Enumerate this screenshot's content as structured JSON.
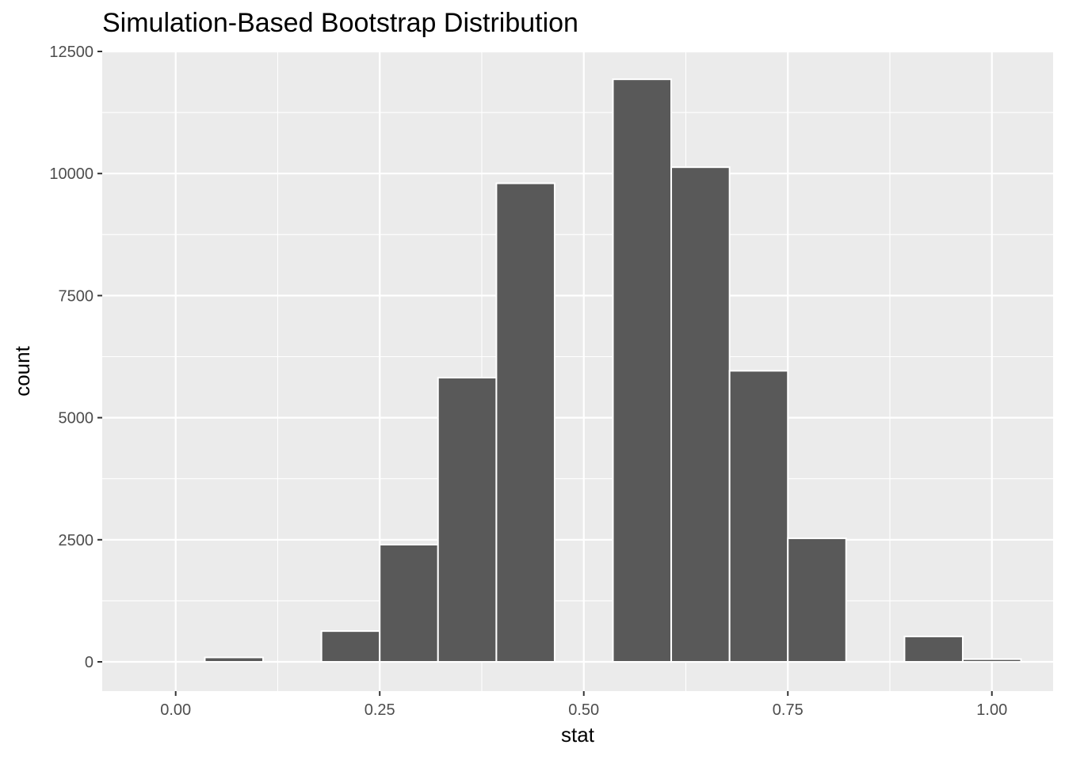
{
  "chart_data": {
    "type": "bar",
    "title": "Simulation-Based Bootstrap Distribution",
    "xlabel": "stat",
    "ylabel": "count",
    "bin_width": 0.142857,
    "bins": [
      {
        "x_start": -0.0714,
        "x_end": 0.0714,
        "count": 0
      },
      {
        "x_start": 0.0357,
        "x_end": 0.1071,
        "count": 90
      },
      {
        "x_start": 0.1071,
        "x_end": 0.1786,
        "count": 0
      },
      {
        "x_start": 0.1786,
        "x_end": 0.25,
        "count": 630
      },
      {
        "x_start": 0.25,
        "x_end": 0.3214,
        "count": 2400
      },
      {
        "x_start": 0.3214,
        "x_end": 0.3929,
        "count": 5820
      },
      {
        "x_start": 0.3929,
        "x_end": 0.4643,
        "count": 9800
      },
      {
        "x_start": 0.4643,
        "x_end": 0.5357,
        "count": 0
      },
      {
        "x_start": 0.5357,
        "x_end": 0.6071,
        "count": 11930
      },
      {
        "x_start": 0.6071,
        "x_end": 0.6786,
        "count": 10130
      },
      {
        "x_start": 0.6786,
        "x_end": 0.75,
        "count": 5960
      },
      {
        "x_start": 0.75,
        "x_end": 0.8214,
        "count": 2530
      },
      {
        "x_start": 0.8214,
        "x_end": 0.8929,
        "count": 0
      },
      {
        "x_start": 0.8929,
        "x_end": 0.9643,
        "count": 520
      },
      {
        "x_start": 0.9643,
        "x_end": 1.0357,
        "count": 55
      }
    ],
    "xlim": [
      -0.09,
      1.075
    ],
    "ylim": [
      -600,
      12500
    ],
    "x_ticks": [
      {
        "value": 0,
        "label": "0.00"
      },
      {
        "value": 0.25,
        "label": "0.25"
      },
      {
        "value": 0.5,
        "label": "0.50"
      },
      {
        "value": 0.75,
        "label": "0.75"
      },
      {
        "value": 1,
        "label": "1.00"
      }
    ],
    "y_ticks": [
      {
        "value": 0,
        "label": "0"
      },
      {
        "value": 2500,
        "label": "2500"
      },
      {
        "value": 5000,
        "label": "5000"
      },
      {
        "value": 7500,
        "label": "7500"
      },
      {
        "value": 10000,
        "label": "10000"
      },
      {
        "value": 12500,
        "label": "12500"
      }
    ],
    "grid": true,
    "colors": {
      "panel_background": "#ebebeb",
      "grid_line": "#ffffff",
      "bar_fill": "#595959",
      "bar_outline": "#ffffff",
      "tick_label": "#4d4d4d",
      "tick_mark": "#333333"
    }
  }
}
